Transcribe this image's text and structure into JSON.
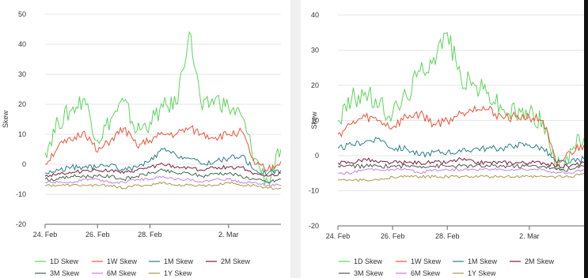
{
  "charts": [
    {
      "id": "left",
      "chart_data": {
        "type": "line",
        "title": "",
        "xlabel": "",
        "ylabel": "Skew",
        "ylim": [
          -20,
          50
        ],
        "yticks": [
          -20,
          -10,
          0,
          10,
          20,
          30,
          40,
          50
        ],
        "xlim": [
          "2024-02-24",
          "2024-03-04"
        ],
        "xticks": [
          {
            "date": "2024-02-24",
            "label": "24. Feb"
          },
          {
            "date": "2024-02-26",
            "label": "26. Feb"
          },
          {
            "date": "2024-02-28",
            "label": "28. Feb"
          },
          {
            "date": "2024-03-02",
            "label": "2. Mar"
          }
        ],
        "grid": "horizontal",
        "legend_position": "bottom",
        "x": [
          "2024-02-24",
          "2024-02-24T12:00",
          "2024-02-25",
          "2024-02-25T12:00",
          "2024-02-26",
          "2024-02-26T12:00",
          "2024-02-27",
          "2024-02-27T12:00",
          "2024-02-28",
          "2024-02-28T12:00",
          "2024-02-29",
          "2024-02-29T12:00",
          "2024-03-01",
          "2024-03-01T12:00",
          "2024-03-02",
          "2024-03-02T12:00",
          "2024-03-03",
          "2024-03-03T12:00",
          "2024-03-04"
        ],
        "series": [
          {
            "name": "1D Skew",
            "color": "#5ed45e",
            "values": [
              4,
              14,
              18,
              22,
              8,
              15,
              21,
              11,
              14,
              19,
              20,
              44,
              18,
              22,
              19,
              16,
              2,
              -6,
              5
            ]
          },
          {
            "name": "1W Skew",
            "color": "#e8553a",
            "values": [
              0,
              6,
              8,
              11,
              4,
              8,
              12,
              6,
              8,
              10,
              10,
              12,
              10,
              9,
              10,
              11,
              0,
              -2,
              1
            ]
          },
          {
            "name": "1M Skew",
            "color": "#2a7e8a",
            "values": [
              -3,
              -2,
              -1,
              -1,
              -1,
              0,
              -2,
              -1,
              1,
              5,
              3,
              2,
              0,
              1,
              2,
              3,
              -2,
              -3,
              -2
            ]
          },
          {
            "name": "2M Skew",
            "color": "#7a1f3d",
            "values": [
              -4,
              -3,
              -3,
              -2,
              -2,
              -2,
              -3,
              -2,
              -1,
              0,
              -1,
              -1,
              -2,
              -1,
              -1,
              -1,
              -3,
              -4,
              -3
            ]
          },
          {
            "name": "3M Skew",
            "color": "#3a6b4a",
            "values": [
              -5,
              -5,
              -4,
              -4,
              -4,
              -4,
              -5,
              -4,
              -3,
              -2,
              -3,
              -3,
              -4,
              -3,
              -3,
              -4,
              -5,
              -6,
              -5
            ]
          },
          {
            "name": "6M Skew",
            "color": "#c583e0",
            "values": [
              -6,
              -6,
              -6,
              -5,
              -5,
              -6,
              -6,
              -5,
              -5,
              -4,
              -5,
              -5,
              -6,
              -5,
              -5,
              -6,
              -6,
              -7,
              -7
            ]
          },
          {
            "name": "1Y Skew",
            "color": "#a89a4d",
            "values": [
              -7,
              -7,
              -7,
              -7,
              -7,
              -7,
              -8,
              -7,
              -7,
              -6,
              -7,
              -7,
              -7,
              -7,
              -6,
              -7,
              -7,
              -8,
              -8
            ]
          }
        ]
      }
    },
    {
      "id": "right",
      "chart_data": {
        "type": "line",
        "title": "",
        "xlabel": "",
        "ylabel": "Skew",
        "ylim": [
          -20,
          40
        ],
        "yticks": [
          -20,
          -10,
          0,
          10,
          20,
          30,
          40
        ],
        "xlim": [
          "2024-02-24",
          "2024-03-04"
        ],
        "xticks": [
          {
            "date": "2024-02-24",
            "label": "24. Feb"
          },
          {
            "date": "2024-02-26",
            "label": "26. Feb"
          },
          {
            "date": "2024-02-28",
            "label": "28. Feb"
          },
          {
            "date": "2024-03-02",
            "label": "2. Mar"
          }
        ],
        "grid": "horizontal",
        "legend_position": "bottom",
        "x": [
          "2024-02-24",
          "2024-02-24T12:00",
          "2024-02-25",
          "2024-02-25T12:00",
          "2024-02-26",
          "2024-02-26T12:00",
          "2024-02-27",
          "2024-02-27T12:00",
          "2024-02-28",
          "2024-02-28T12:00",
          "2024-02-29",
          "2024-02-29T12:00",
          "2024-03-01",
          "2024-03-01T12:00",
          "2024-03-02",
          "2024-03-02T12:00",
          "2024-03-03",
          "2024-03-03T12:00",
          "2024-03-04"
        ],
        "series": [
          {
            "name": "1D Skew",
            "color": "#5ed45e",
            "values": [
              10,
              16,
              18,
              14,
              12,
              17,
              24,
              28,
              35,
              22,
              20,
              18,
              13,
              12,
              12,
              10,
              -4,
              2,
              5
            ]
          },
          {
            "name": "1W Skew",
            "color": "#e8553a",
            "values": [
              6,
              9,
              11,
              10,
              8,
              11,
              12,
              9,
              10,
              12,
              14,
              13,
              11,
              11,
              11,
              10,
              -3,
              1,
              3
            ]
          },
          {
            "name": "1M Skew",
            "color": "#2a7e8a",
            "values": [
              2,
              3,
              4,
              5,
              2,
              2,
              0,
              1,
              1,
              1,
              2,
              2,
              2,
              3,
              3,
              2,
              -2,
              -2,
              -1
            ]
          },
          {
            "name": "2M Skew",
            "color": "#7a1f3d",
            "values": [
              -2,
              -2,
              -1,
              -2,
              -2,
              -2,
              -2,
              -2,
              -2,
              -1,
              -2,
              -2,
              -2,
              -2,
              -2,
              -2,
              -3,
              -3,
              -2
            ]
          },
          {
            "name": "3M Skew",
            "color": "#555555",
            "values": [
              -3,
              -3,
              -3,
              -3,
              -3,
              -3,
              -3,
              -3,
              -3,
              -3,
              -3,
              -3,
              -3,
              -3,
              -3,
              -3,
              -4,
              -4,
              -3
            ]
          },
          {
            "name": "6M Skew",
            "color": "#c583e0",
            "values": [
              -5,
              -5,
              -4,
              -4,
              -4,
              -4,
              -5,
              -4,
              -4,
              -4,
              -4,
              -4,
              -4,
              -4,
              -4,
              -4,
              -5,
              -5,
              -4
            ]
          },
          {
            "name": "1Y Skew",
            "color": "#a89a4d",
            "values": [
              -7,
              -7,
              -7,
              -7,
              -6,
              -6,
              -6,
              -6,
              -6,
              -6,
              -6,
              -6,
              -6,
              -6,
              -6,
              -6,
              -6,
              -6,
              -5
            ]
          }
        ]
      }
    }
  ]
}
